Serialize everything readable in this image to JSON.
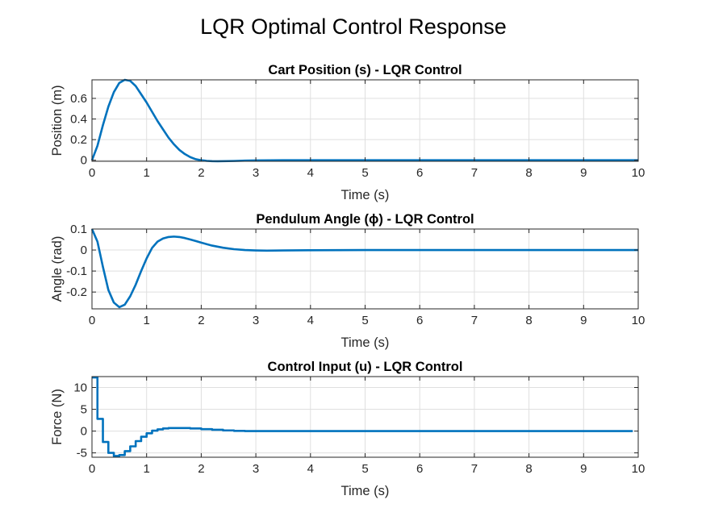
{
  "figure": {
    "title": "LQR Optimal Control Response"
  },
  "colors": {
    "line": "#0072BD",
    "grid": "#DFDFDF",
    "axis": "#262626"
  },
  "chart_data": [
    {
      "type": "line",
      "title": "Cart Position (s) - LQR Control",
      "xlabel": "Time (s)",
      "ylabel": "Position (m)",
      "xlim": [
        0,
        10
      ],
      "ylim": [
        -0.01,
        0.78
      ],
      "xticks": [
        "0",
        "1",
        "2",
        "3",
        "4",
        "5",
        "6",
        "7",
        "8",
        "9",
        "10"
      ],
      "yticks": [
        {
          "v": 0,
          "label": "0"
        },
        {
          "v": 0.2,
          "label": "0.2"
        },
        {
          "v": 0.4,
          "label": "0.4"
        },
        {
          "v": 0.6,
          "label": "0.6"
        }
      ],
      "grid": true,
      "series": [
        {
          "x": [
            0,
            0.1,
            0.2,
            0.3,
            0.4,
            0.5,
            0.6,
            0.7,
            0.8,
            0.9,
            1.0,
            1.1,
            1.2,
            1.3,
            1.4,
            1.5,
            1.6,
            1.7,
            1.8,
            1.9,
            2.0,
            2.1,
            2.2,
            2.3,
            2.4,
            2.6,
            2.8,
            3.0,
            3.5,
            4.0,
            5.0,
            6.0,
            7.0,
            8.0,
            9.0,
            10.0
          ],
          "y": [
            0,
            0.14,
            0.34,
            0.52,
            0.66,
            0.75,
            0.78,
            0.77,
            0.72,
            0.64,
            0.56,
            0.47,
            0.38,
            0.3,
            0.22,
            0.155,
            0.1,
            0.06,
            0.03,
            0.01,
            0.0,
            -0.006,
            -0.009,
            -0.01,
            -0.009,
            -0.007,
            -0.004,
            -0.002,
            0.0,
            0.0,
            0.0,
            0.0,
            0.0,
            0.0,
            0.0,
            0.0
          ]
        }
      ]
    },
    {
      "type": "line",
      "title": "Pendulum Angle (ϕ) - LQR Control",
      "xlabel": "Time (s)",
      "ylabel": "Angle (rad)",
      "xlim": [
        0,
        10
      ],
      "ylim": [
        -0.28,
        0.1
      ],
      "xticks": [
        "0",
        "1",
        "2",
        "3",
        "4",
        "5",
        "6",
        "7",
        "8",
        "9",
        "10"
      ],
      "yticks": [
        {
          "v": 0.1,
          "label": "0.1"
        },
        {
          "v": 0,
          "label": "0"
        },
        {
          "v": -0.1,
          "label": "-0.1"
        },
        {
          "v": -0.2,
          "label": "-0.2"
        }
      ],
      "grid": true,
      "series": [
        {
          "x": [
            0,
            0.1,
            0.2,
            0.3,
            0.4,
            0.5,
            0.6,
            0.7,
            0.8,
            0.9,
            1.0,
            1.1,
            1.2,
            1.3,
            1.4,
            1.5,
            1.6,
            1.7,
            1.8,
            1.9,
            2.0,
            2.2,
            2.4,
            2.6,
            2.8,
            3.0,
            3.2,
            3.5,
            4.0,
            5.0,
            6.0,
            7.0,
            8.0,
            9.0,
            10.0
          ],
          "y": [
            0.1,
            0.04,
            -0.08,
            -0.19,
            -0.25,
            -0.272,
            -0.26,
            -0.22,
            -0.165,
            -0.1,
            -0.04,
            0.01,
            0.04,
            0.055,
            0.062,
            0.064,
            0.062,
            0.057,
            0.05,
            0.043,
            0.035,
            0.021,
            0.011,
            0.004,
            0.0,
            -0.002,
            -0.003,
            -0.002,
            -0.001,
            0.0,
            0.0,
            0.0,
            0.0,
            0.0,
            0.0
          ]
        }
      ]
    },
    {
      "type": "line",
      "title": "Control Input (u) - LQR Control",
      "xlabel": "Time (s)",
      "ylabel": "Force (N)",
      "xlim": [
        0,
        10
      ],
      "ylim": [
        -6,
        12.5
      ],
      "xticks": [
        "0",
        "1",
        "2",
        "3",
        "4",
        "5",
        "6",
        "7",
        "8",
        "9",
        "10"
      ],
      "yticks": [
        {
          "v": 10,
          "label": "10"
        },
        {
          "v": 5,
          "label": "5"
        },
        {
          "v": 0,
          "label": "0"
        },
        {
          "v": -5,
          "label": "-5"
        }
      ],
      "grid": true,
      "stairs": true,
      "series": [
        {
          "x": [
            0,
            0.1,
            0.2,
            0.3,
            0.4,
            0.5,
            0.6,
            0.7,
            0.8,
            0.9,
            1.0,
            1.1,
            1.2,
            1.3,
            1.4,
            1.6,
            1.8,
            2.0,
            2.2,
            2.4,
            2.6,
            2.8,
            9.9
          ],
          "y": [
            12.3,
            2.8,
            -2.5,
            -5.0,
            -5.7,
            -5.5,
            -4.6,
            -3.5,
            -2.3,
            -1.3,
            -0.5,
            0.1,
            0.4,
            0.6,
            0.7,
            0.7,
            0.6,
            0.45,
            0.3,
            0.15,
            0.05,
            0.0,
            0.0
          ]
        }
      ]
    }
  ]
}
